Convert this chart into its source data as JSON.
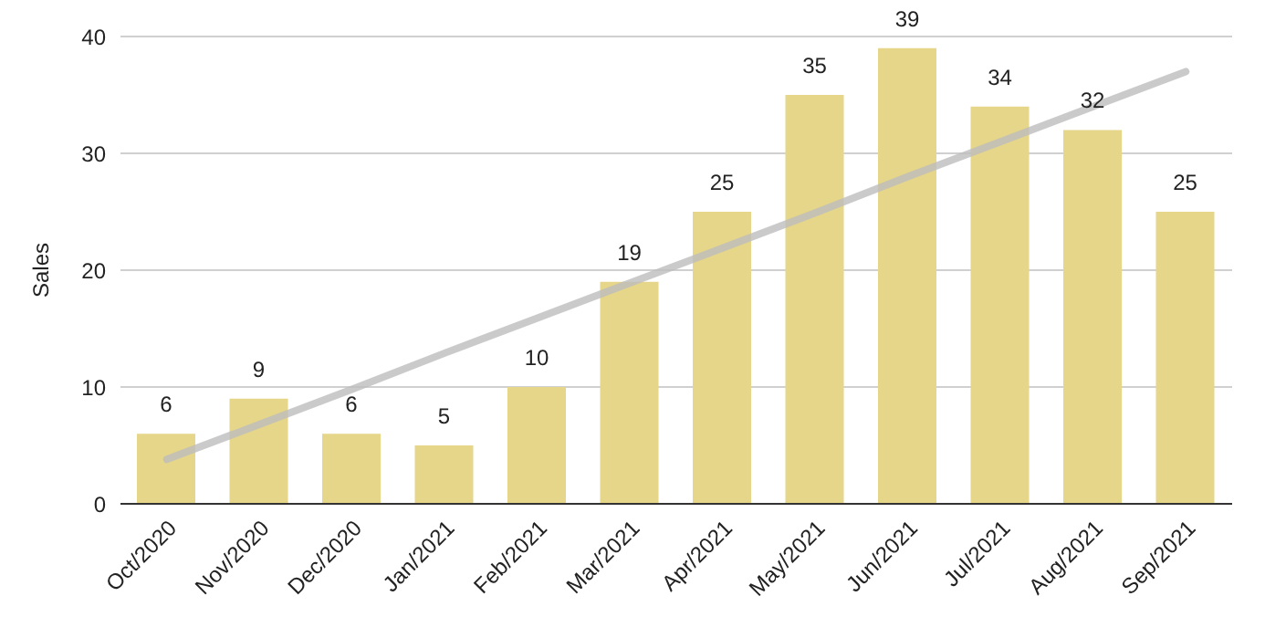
{
  "chart_data": {
    "type": "bar",
    "ylabel": "Sales",
    "categories": [
      "Oct/2020",
      "Nov/2020",
      "Dec/2020",
      "Jan/2021",
      "Feb/2021",
      "Mar/2021",
      "Apr/2021",
      "May/2021",
      "Jun/2021",
      "Jul/2021",
      "Aug/2021",
      "Sep/2021"
    ],
    "series": [
      {
        "color": "#e6d68a",
        "values": [
          6,
          9,
          6,
          5,
          10,
          19,
          25,
          35,
          39,
          34,
          32,
          25
        ],
        "value_labels": [
          "6",
          "9",
          "6",
          "5",
          "10",
          "19",
          "25",
          "35",
          "39",
          "34",
          "32",
          "25"
        ]
      },
      {
        "type": "line",
        "color": "#bdbdbd",
        "values": [
          3.8,
          6.8,
          9.8,
          12.9,
          15.9,
          18.9,
          21.9,
          24.9,
          28,
          31,
          34,
          37
        ]
      }
    ],
    "ylim": [
      0,
      40
    ],
    "yticks": [
      0,
      10,
      20,
      30,
      40
    ],
    "grid": "y",
    "legend": false,
    "marker": "none"
  }
}
